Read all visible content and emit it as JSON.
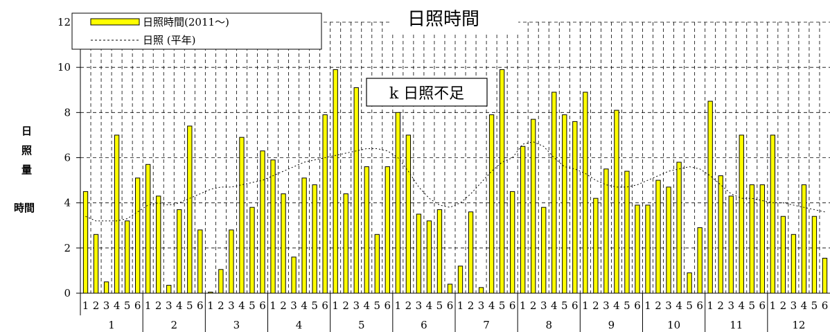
{
  "chart_data": {
    "type": "bar",
    "title": "日照時間",
    "annotation": "k 日照不足",
    "ylabel": {
      "line1": "日",
      "line2": "照",
      "line3": "量",
      "unit": "時間"
    },
    "ylim": [
      0,
      12
    ],
    "yticks": [
      "0",
      "2",
      "4",
      "6",
      "8",
      "10",
      "12"
    ],
    "grid": true,
    "legend_position": "top-left",
    "months": [
      "1",
      "2",
      "3",
      "4",
      "5",
      "6",
      "7",
      "8",
      "9",
      "10",
      "11",
      "12"
    ],
    "pentad_labels": [
      "1",
      "2",
      "3",
      "4",
      "5",
      "6"
    ],
    "series": [
      {
        "name": "日照時間(2011～)",
        "kind": "bar",
        "color": "#ffff00",
        "values": [
          4.5,
          2.6,
          0.5,
          7.0,
          3.2,
          5.1,
          5.7,
          4.3,
          0.35,
          3.7,
          7.4,
          2.8,
          0.05,
          1.05,
          2.8,
          6.9,
          3.8,
          6.3,
          5.9,
          4.4,
          1.6,
          5.1,
          4.8,
          7.9,
          9.9,
          4.4,
          9.1,
          5.6,
          2.6,
          5.6,
          8.0,
          7.0,
          3.5,
          3.2,
          3.7,
          0.4,
          1.2,
          3.6,
          0.25,
          7.9,
          9.9,
          4.5,
          6.5,
          7.7,
          3.8,
          8.9,
          7.9,
          7.6,
          8.9,
          4.2,
          5.5,
          8.1,
          5.4,
          3.9,
          3.9,
          5.0,
          4.7,
          5.8,
          0.9,
          2.9,
          8.5,
          5.2,
          4.3,
          7.0,
          4.8,
          4.8,
          7.0,
          3.4,
          2.6,
          4.8,
          3.4,
          1.55
        ]
      },
      {
        "name": "日照 (平年)",
        "kind": "line",
        "style": "dotted",
        "color": "#000000",
        "values": [
          3.4,
          3.2,
          3.2,
          3.2,
          3.3,
          3.6,
          3.9,
          4.0,
          3.9,
          4.0,
          4.2,
          4.4,
          4.6,
          4.7,
          4.7,
          4.8,
          4.9,
          5.0,
          5.2,
          5.4,
          5.6,
          5.8,
          5.9,
          6.0,
          6.1,
          6.2,
          6.3,
          6.4,
          6.4,
          6.3,
          6.0,
          5.4,
          4.7,
          4.2,
          3.9,
          3.8,
          4.0,
          4.4,
          4.9,
          5.4,
          5.8,
          6.0,
          6.6,
          6.7,
          6.5,
          6.0,
          5.6,
          5.5,
          5.3,
          5.0,
          4.8,
          4.7,
          4.7,
          4.8,
          5.0,
          5.2,
          5.4,
          5.5,
          5.6,
          5.5,
          5.2,
          4.8,
          4.4,
          4.2,
          4.2,
          4.1,
          4.0,
          4.0,
          3.9,
          3.8,
          3.7,
          3.6
        ]
      }
    ]
  }
}
